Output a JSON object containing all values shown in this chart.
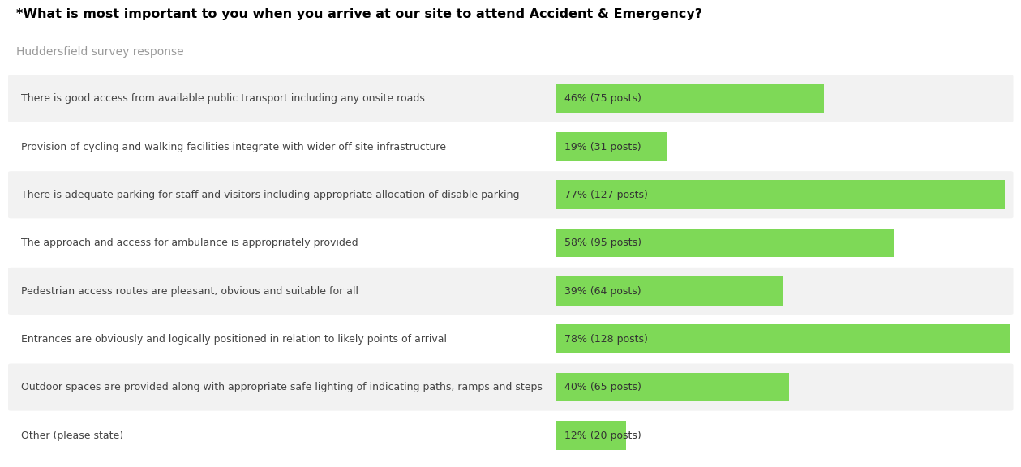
{
  "title": "*What is most important to you when you arrive at our site to attend Accident & Emergency?",
  "subtitle": "Huddersfield survey response",
  "title_color": "#000000",
  "subtitle_color": "#999999",
  "background_color": "#ffffff",
  "bar_color": "#7ed957",
  "row_bg_light": "#f2f2f2",
  "row_bg_dark": "#ffffff",
  "categories": [
    "There is good access from available public transport including any onsite roads",
    "Provision of cycling and walking facilities integrate with wider off site infrastructure",
    "There is adequate parking for staff and visitors including appropriate allocation of disable parking",
    "The approach and access for ambulance is appropriately provided",
    "Pedestrian access routes are pleasant, obvious and suitable for all",
    "Entrances are obviously and logically positioned in relation to likely points of arrival",
    "Outdoor spaces are provided along with appropriate safe lighting of indicating paths, ramps and steps",
    "Other (please state)"
  ],
  "values": [
    46,
    19,
    77,
    58,
    39,
    78,
    40,
    12
  ],
  "labels": [
    "46% (75 posts)",
    "19% (31 posts)",
    "77% (127 posts)",
    "58% (95 posts)",
    "39% (64 posts)",
    "78% (128 posts)",
    "40% (65 posts)",
    "12% (20 posts)"
  ],
  "max_value": 78,
  "label_fontsize": 9.0,
  "category_fontsize": 9.0,
  "title_fontsize": 11.5,
  "subtitle_fontsize": 10.0
}
